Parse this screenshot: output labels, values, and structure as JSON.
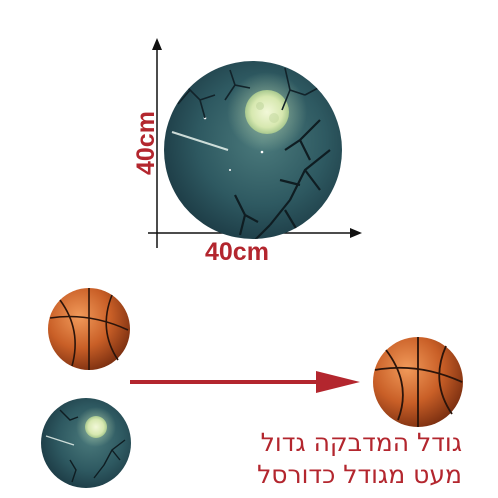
{
  "dimensions": {
    "width_label": "40cm",
    "height_label": "40cm"
  },
  "caption": {
    "line1": "גודל המדבקה גדול",
    "line2": "מעט מגודל כדורסל"
  },
  "colors": {
    "accent": "#b3262e",
    "night_sky": "#2f5a62",
    "moon": "#e7f2c4",
    "ball": "#c55a24"
  },
  "icons": [
    "moon-sticker",
    "basketball",
    "arrow-right"
  ]
}
